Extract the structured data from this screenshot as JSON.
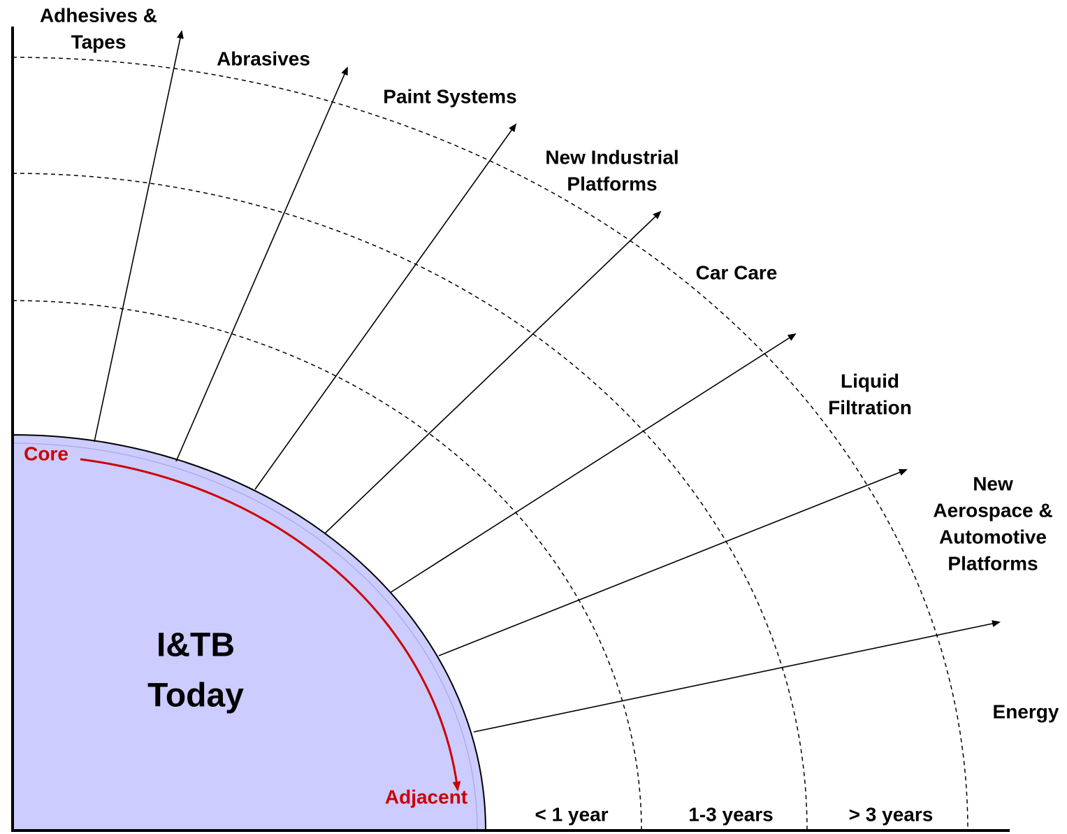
{
  "center": {
    "lines": [
      "I&TB",
      "Today"
    ]
  },
  "arc": {
    "start": "Core",
    "end": "Adjacent"
  },
  "horizons": [
    "< 1 year",
    "1-3 years",
    "> 3 years"
  ],
  "directions": [
    {
      "lines": [
        "Adhesives &",
        "Tapes"
      ]
    },
    {
      "lines": [
        "Abrasives"
      ]
    },
    {
      "lines": [
        "Paint Systems"
      ]
    },
    {
      "lines": [
        "New Industrial",
        "Platforms"
      ]
    },
    {
      "lines": [
        "Car Care"
      ]
    },
    {
      "lines": [
        "Liquid",
        "Filtration"
      ]
    },
    {
      "lines": [
        "New",
        "Aerospace &",
        "Automotive",
        "Platforms"
      ]
    },
    {
      "lines": [
        "Energy"
      ]
    }
  ]
}
